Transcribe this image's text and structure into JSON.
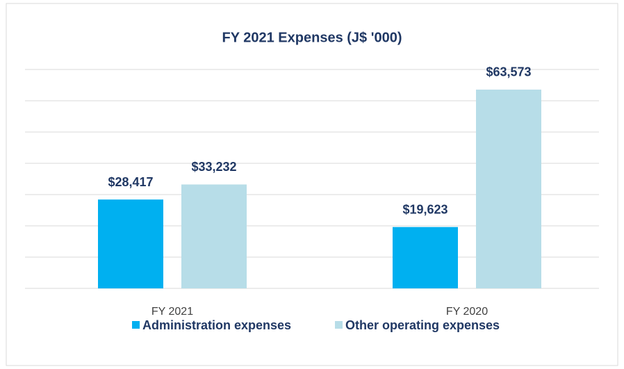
{
  "chart_data": {
    "type": "bar",
    "title": "FY 2021 Expenses (J$ '000)",
    "categories": [
      "FY 2021",
      "FY 2020"
    ],
    "series": [
      {
        "name": "Administration expenses",
        "color": "#00b0f0",
        "values": [
          28417,
          19623
        ],
        "value_labels": [
          "$28,417",
          "$19,623"
        ]
      },
      {
        "name": "Other operating expenses",
        "color": "#b7dde8",
        "values": [
          33232,
          63573
        ],
        "value_labels": [
          "$33,232",
          "$63,573"
        ]
      }
    ],
    "ylim": [
      0,
      70000
    ],
    "yticks": [
      0,
      10000,
      20000,
      30000,
      40000,
      50000,
      60000,
      70000
    ],
    "grid": true,
    "legend": "bottom"
  }
}
